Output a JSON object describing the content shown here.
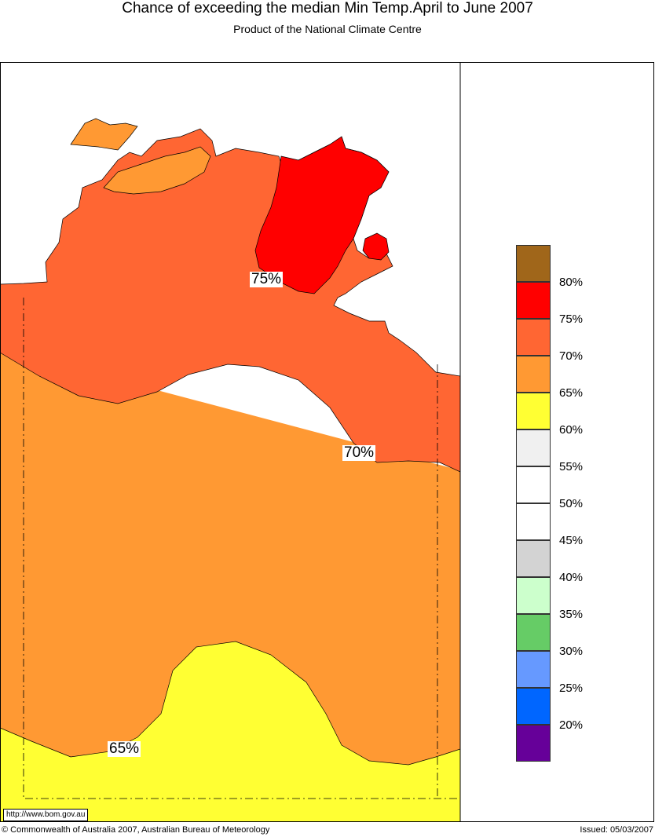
{
  "header": {
    "title": "Chance of exceeding the median Min Temp.April to June 2007",
    "subtitle": "Product of the National Climate Centre"
  },
  "contour_labels": [
    "75%",
    "70%",
    "65%"
  ],
  "legend": {
    "labels": [
      "80%",
      "75%",
      "70%",
      "65%",
      "60%",
      "55%",
      "50%",
      "45%",
      "40%",
      "35%",
      "30%",
      "25%",
      "20%"
    ],
    "colors": [
      "#a0661a",
      "#ff0000",
      "#ff6633",
      "#ff9933",
      "#ffff33",
      "#f0f0f0",
      "#ffffff",
      "#ffffff",
      "#d3d3d3",
      "#ccffcc",
      "#66cc66",
      "#6699ff",
      "#0066ff",
      "#660099"
    ]
  },
  "footer": {
    "url": "http://www.bom.gov.au",
    "copyright": "© Commonwealth of Australia 2007, Australian Bureau of Meteorology",
    "issued": "Issued: 05/03/2007"
  }
}
